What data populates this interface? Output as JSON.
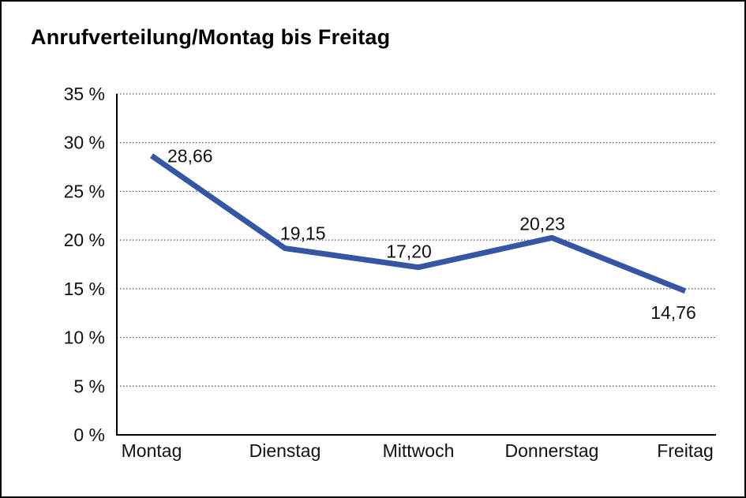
{
  "window": {
    "background": "#ffffff",
    "frame_border_color": "#000000"
  },
  "title": "Anrufverteilung/Montag bis Freitag",
  "chart_data": {
    "type": "line",
    "title": "Anrufverteilung/Montag bis Freitag",
    "categories": [
      "Montag",
      "Dienstag",
      "Mittwoch",
      "Donnerstag",
      "Freitag"
    ],
    "values": [
      28.66,
      19.15,
      17.2,
      20.23,
      14.76
    ],
    "data_labels": [
      "28,66",
      "19,15",
      "17,20",
      "20,23",
      "14,76"
    ],
    "unit": "%",
    "xlabel": "",
    "ylabel": "",
    "ylim": [
      0,
      35
    ],
    "ytick_step": 5,
    "ytick_labels": [
      "0 %",
      "5 %",
      "10 %",
      "15 %",
      "20 %",
      "25 %",
      "30 %",
      "35 %"
    ],
    "grid": "horizontal-dotted",
    "gridline_color": "#555555",
    "axis_color": "#000000",
    "legend": "none",
    "line_color": "#3556A4",
    "line_width": 7,
    "text_color": "#111111"
  }
}
